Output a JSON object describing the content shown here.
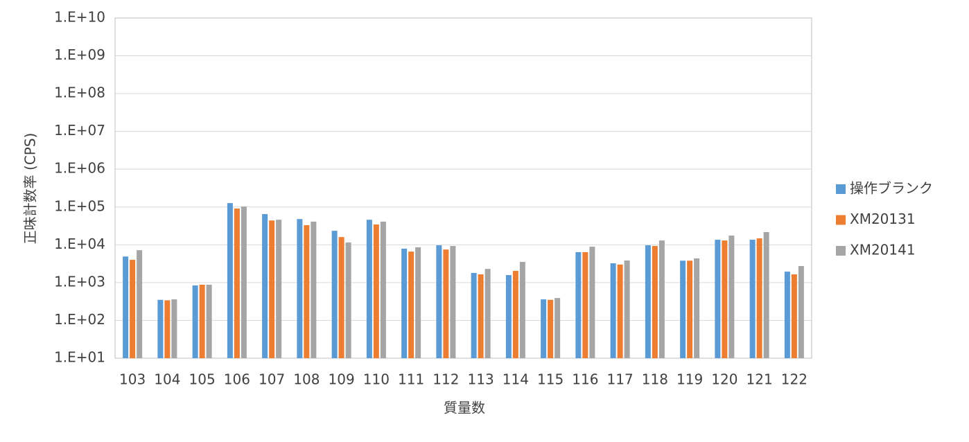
{
  "chart_data": {
    "type": "bar",
    "log_scale": true,
    "grid": true,
    "legend": "right",
    "y_label": "正味計数率 (CPS)",
    "x_label": "質量数",
    "categories": [
      "103",
      "104",
      "105",
      "106",
      "107",
      "108",
      "109",
      "110",
      "111",
      "112",
      "113",
      "114",
      "115",
      "116",
      "117",
      "118",
      "119",
      "120",
      "121",
      "122"
    ],
    "series": [
      {
        "name": "操作ブランク",
        "color": "#5b9bd5",
        "values": [
          4900,
          350,
          840,
          127000,
          65000,
          48000,
          23500,
          46000,
          7900,
          9700,
          1800,
          1580,
          360,
          6400,
          3240,
          9700,
          3800,
          13600,
          13600,
          1950
        ]
      },
      {
        "name": "XM20131",
        "color": "#ed7d31",
        "values": [
          4000,
          340,
          880,
          91000,
          44000,
          33000,
          16000,
          34500,
          6600,
          7500,
          1650,
          2040,
          350,
          6400,
          3000,
          9300,
          3800,
          13000,
          14800,
          1650
        ]
      },
      {
        "name": "XM20141",
        "color": "#a5a5a5",
        "values": [
          7200,
          360,
          880,
          103000,
          46000,
          41000,
          11500,
          41000,
          8600,
          9300,
          2300,
          3530,
          390,
          8900,
          3840,
          13000,
          4360,
          17500,
          21700,
          2740
        ]
      }
    ],
    "ylim": [
      10,
      10000000000
    ],
    "yticks": [
      {
        "value": 10,
        "label": "1.E+01"
      },
      {
        "value": 100,
        "label": "1.E+02"
      },
      {
        "value": 1000,
        "label": "1.E+03"
      },
      {
        "value": 10000,
        "label": "1.E+04"
      },
      {
        "value": 100000,
        "label": "1.E+05"
      },
      {
        "value": 1000000,
        "label": "1.E+06"
      },
      {
        "value": 10000000,
        "label": "1.E+07"
      },
      {
        "value": 100000000,
        "label": "1.E+08"
      },
      {
        "value": 1000000000,
        "label": "1.E+09"
      },
      {
        "value": 10000000000,
        "label": "1.E+10"
      }
    ]
  }
}
